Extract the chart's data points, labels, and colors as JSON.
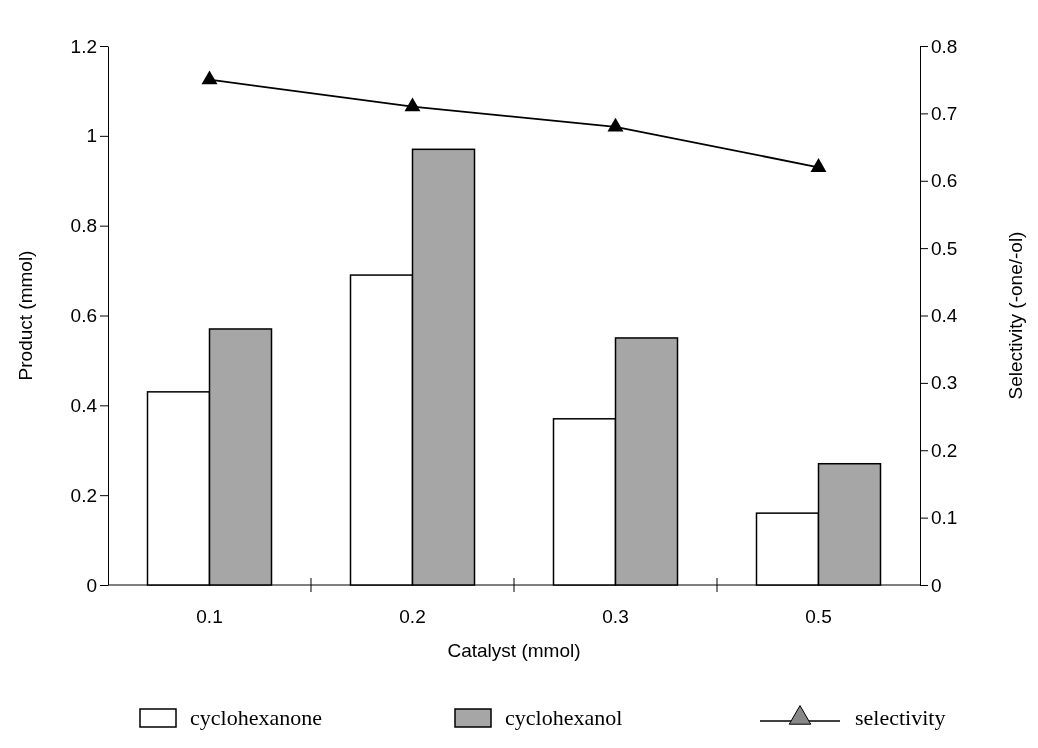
{
  "chart_data": {
    "type": "bar",
    "xlabel": "Catalyst (mmol)",
    "ylabel": "Product (mmol)",
    "y2label": "Selectivity (-one/-ol)",
    "categories": [
      "0.1",
      "0.2",
      "0.3",
      "0.5"
    ],
    "series": [
      {
        "name": "cyclohexanone",
        "color": "#ffffff",
        "values": [
          0.43,
          0.69,
          0.37,
          0.16
        ]
      },
      {
        "name": "cyclohexanol",
        "color": "#a6a6a6",
        "values": [
          0.57,
          0.97,
          0.55,
          0.27
        ]
      },
      {
        "name": "selectivity",
        "type": "line",
        "axis": "y2",
        "color": "#000000",
        "marker": "triangle",
        "values": [
          0.75,
          0.71,
          0.68,
          0.62
        ]
      }
    ],
    "ylim": [
      0,
      1.2
    ],
    "yticks": [
      0,
      0.2,
      0.4,
      0.6,
      0.8,
      1,
      1.2
    ],
    "y2lim": [
      0,
      0.8
    ],
    "y2ticks": [
      0,
      0.1,
      0.2,
      0.3,
      0.4,
      0.5,
      0.6,
      0.7,
      0.8
    ],
    "legend": "bottom"
  }
}
